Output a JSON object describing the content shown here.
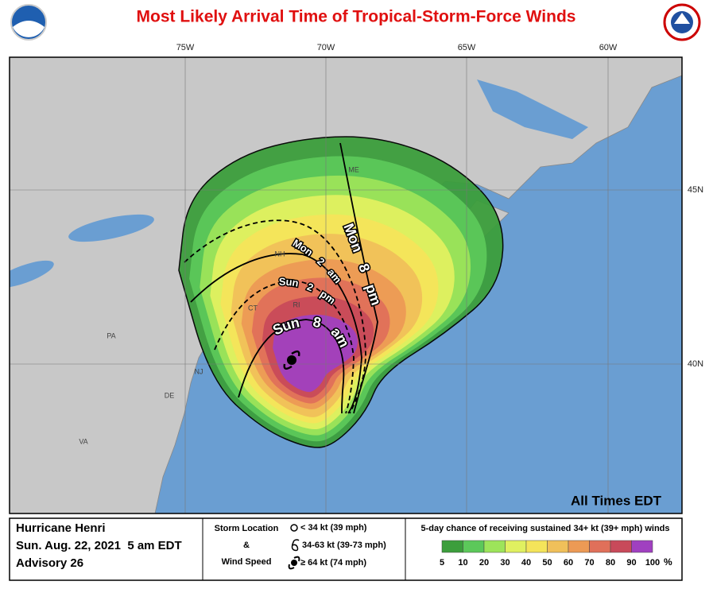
{
  "header": {
    "title": "Most Likely Arrival Time of Tropical-Storm-Force Winds"
  },
  "map": {
    "longitude_labels": [
      "75W",
      "70W",
      "65W",
      "60W"
    ],
    "latitude_labels": [
      "45N",
      "40N"
    ],
    "region_labels": [
      "ME",
      "NH",
      "CT",
      "RI",
      "PA",
      "NJ",
      "DE",
      "VA"
    ],
    "time_labels": [
      "Mon 8 pm",
      "Mon 2 am",
      "Sun 2 pm",
      "Sun 8 am"
    ],
    "time_zone_note": "All Times EDT"
  },
  "footer": {
    "storm": [
      "Hurricane Henri",
      "Sun. Aug. 22, 2021  5 am EDT",
      "Advisory 26"
    ],
    "symbol_legend": {
      "title_lines": [
        "Storm Location",
        "&",
        "Wind Speed"
      ],
      "items": [
        "< 34 kt (39 mph)",
        "34-63 kt (39-73 mph)",
        "≥ 64 kt (74 mph)"
      ]
    },
    "probability_legend": {
      "title": "5-day chance of receiving sustained 34+ kt (39+ mph) winds",
      "labels": [
        "5",
        "10",
        "20",
        "30",
        "40",
        "50",
        "60",
        "70",
        "80",
        "90",
        "100"
      ],
      "unit": "%",
      "colors": [
        "#3c9e3c",
        "#5cc85a",
        "#9de45a",
        "#e0f060",
        "#f4e45a",
        "#f0c05a",
        "#ec9a55",
        "#e0705a",
        "#c84a5a",
        "#a040c0"
      ]
    }
  }
}
